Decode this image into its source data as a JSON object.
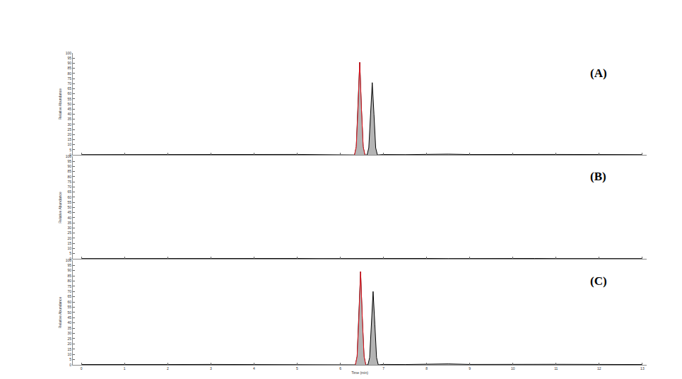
{
  "chart_data": [
    {
      "type": "line",
      "label": "(A)",
      "y_label": "Relative Abundance",
      "grid": false,
      "tick_labels": "y",
      "x": [
        0,
        1,
        2,
        3,
        4,
        5,
        5.5,
        6,
        6.2,
        6.33,
        6.37,
        6.41,
        6.45,
        6.49,
        6.53,
        6.57,
        6.62,
        6.66,
        6.7,
        6.74,
        6.78,
        6.82,
        6.86,
        7,
        7.5,
        8,
        8.5,
        9,
        10,
        10.5,
        11,
        12,
        13
      ],
      "series": [
        {
          "color": "#000000",
          "values": [
            0.3,
            0.4,
            0.3,
            0.4,
            0.3,
            0.5,
            0.3,
            0.4,
            0.3,
            0,
            8,
            45,
            91,
            45,
            8,
            0,
            0,
            7,
            40,
            71,
            40,
            7,
            0,
            0.4,
            0.3,
            0.5,
            0.8,
            0.4,
            0.6,
            0.9,
            0.5,
            0.4,
            0.3
          ]
        },
        {
          "color": "#e0101a",
          "values": [
            null,
            null,
            null,
            null,
            null,
            null,
            null,
            null,
            null,
            0,
            8,
            45,
            91,
            45,
            8,
            0,
            null,
            null,
            null,
            null,
            null,
            null,
            null,
            null,
            null,
            null,
            null,
            null,
            null,
            null,
            null,
            null,
            null
          ]
        }
      ],
      "xlim": [
        -0.2,
        13.1
      ],
      "xticks": [
        0,
        1,
        2,
        3,
        4,
        5,
        6,
        7,
        8,
        9,
        10,
        11,
        12,
        13
      ],
      "ylim": [
        0,
        100
      ],
      "yticks": [
        0,
        5,
        10,
        15,
        20,
        25,
        30,
        35,
        40,
        45,
        50,
        55,
        60,
        65,
        70,
        75,
        80,
        85,
        90,
        95,
        100
      ]
    },
    {
      "type": "line",
      "label": "(B)",
      "y_label": "Relative Abundance",
      "grid": false,
      "tick_labels": "y",
      "x": [
        0,
        1,
        2,
        3,
        4,
        5,
        5.5,
        6,
        6.2,
        6.33,
        6.37,
        6.41,
        6.45,
        6.49,
        6.53,
        6.57,
        6.62,
        6.66,
        6.7,
        6.74,
        6.78,
        6.82,
        6.86,
        7,
        7.5,
        8,
        8.5,
        9,
        10,
        10.5,
        11,
        12,
        13
      ],
      "series": [
        {
          "color": "#000000",
          "values": [
            0.2,
            0.3,
            0.2,
            0.3,
            0.2,
            0.3,
            0.2,
            0.3,
            0.2,
            0.2,
            0.3,
            0.2,
            0.3,
            0.2,
            0.3,
            0.2,
            0.2,
            0.3,
            0.2,
            0.3,
            0.2,
            0.3,
            0.2,
            0.3,
            0.2,
            0.3,
            0.2,
            0.3,
            0.2,
            0.3,
            0.2,
            0.3,
            0.2
          ]
        }
      ],
      "xlim": [
        -0.2,
        13.1
      ],
      "xticks": [
        0,
        1,
        2,
        3,
        4,
        5,
        6,
        7,
        8,
        9,
        10,
        11,
        12,
        13
      ],
      "ylim": [
        0,
        100
      ],
      "yticks": [
        0,
        5,
        10,
        15,
        20,
        25,
        30,
        35,
        40,
        45,
        50,
        55,
        60,
        65,
        70,
        75,
        80,
        85,
        90,
        95,
        100
      ]
    },
    {
      "type": "line",
      "label": "(C)",
      "y_label": "Relative Abundance",
      "x_label": "Time (min)",
      "grid": false,
      "x": [
        0,
        1,
        2,
        3,
        4,
        5,
        5.5,
        6,
        6.2,
        6.35,
        6.39,
        6.43,
        6.47,
        6.51,
        6.55,
        6.59,
        6.64,
        6.68,
        6.72,
        6.76,
        6.8,
        6.84,
        6.88,
        7,
        7.5,
        8,
        8.5,
        9,
        10,
        10.5,
        11,
        12,
        13
      ],
      "series": [
        {
          "color": "#000000",
          "values": [
            0.3,
            0.5,
            0.3,
            0.4,
            0.3,
            0.4,
            0.3,
            0.5,
            0.3,
            0,
            8,
            44,
            89,
            44,
            8,
            0,
            0,
            7,
            39,
            70,
            39,
            7,
            0,
            0.4,
            0.3,
            0.6,
            0.9,
            0.4,
            0.5,
            0.8,
            0.5,
            0.4,
            0.3
          ]
        },
        {
          "color": "#e0101a",
          "values": [
            null,
            null,
            null,
            null,
            null,
            null,
            null,
            null,
            null,
            0,
            8,
            44,
            89,
            44,
            8,
            0,
            null,
            null,
            null,
            null,
            null,
            null,
            null,
            null,
            null,
            null,
            null,
            null,
            null,
            null,
            null,
            null,
            null
          ]
        }
      ],
      "xlim": [
        -0.2,
        13.1
      ],
      "xticks": [
        0,
        1,
        2,
        3,
        4,
        5,
        6,
        7,
        8,
        9,
        10,
        11,
        12,
        13
      ],
      "ylim": [
        0,
        100
      ],
      "yticks": [
        0,
        5,
        10,
        15,
        20,
        25,
        30,
        35,
        40,
        45,
        50,
        55,
        60,
        65,
        70,
        75,
        80,
        85,
        90,
        95,
        100
      ]
    }
  ]
}
